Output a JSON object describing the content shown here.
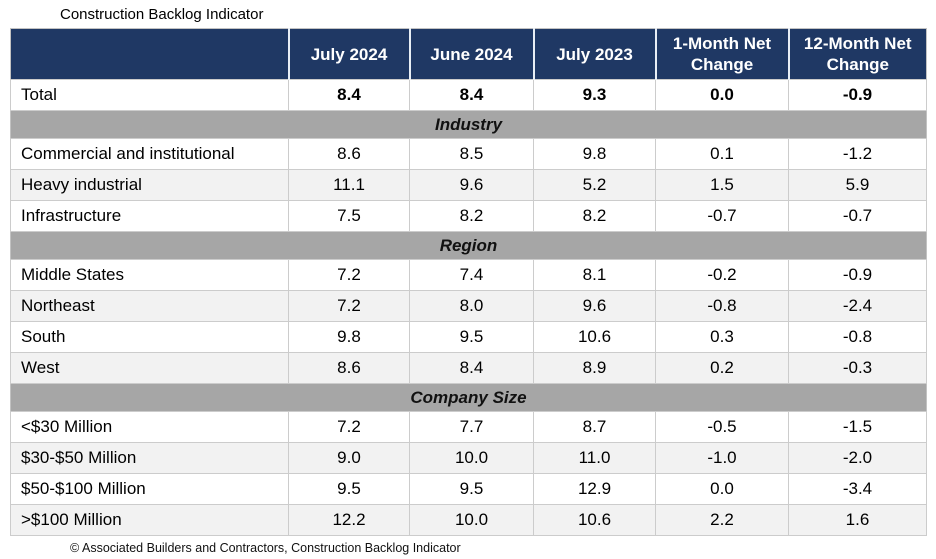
{
  "title": "Construction Backlog Indicator",
  "footer": "© Associated Builders and Contractors, Construction Backlog Indicator",
  "colors": {
    "header_bg": "#1F3864",
    "header_text": "#FFFFFF",
    "section_band_bg": "#A6A6A6",
    "row_alt_bg": "#F2F2F2",
    "grid_border": "#CCCCCC"
  },
  "chart_data": {
    "type": "table",
    "title": "Construction Backlog Indicator",
    "columns": [
      "",
      "July 2024",
      "June 2024",
      "July 2023",
      "1-Month Net Change",
      "12-Month Net Change"
    ],
    "total_row": {
      "label": "Total",
      "values": [
        "8.4",
        "8.4",
        "9.3",
        "0.0",
        "-0.9"
      ]
    },
    "sections": [
      {
        "name": "Industry",
        "rows": [
          {
            "label": "Commercial and institutional",
            "values": [
              "8.6",
              "8.5",
              "9.8",
              "0.1",
              "-1.2"
            ]
          },
          {
            "label": "Heavy industrial",
            "values": [
              "11.1",
              "9.6",
              "5.2",
              "1.5",
              "5.9"
            ]
          },
          {
            "label": "Infrastructure",
            "values": [
              "7.5",
              "8.2",
              "8.2",
              "-0.7",
              "-0.7"
            ]
          }
        ]
      },
      {
        "name": "Region",
        "rows": [
          {
            "label": "Middle States",
            "values": [
              "7.2",
              "7.4",
              "8.1",
              "-0.2",
              "-0.9"
            ]
          },
          {
            "label": "Northeast",
            "values": [
              "7.2",
              "8.0",
              "9.6",
              "-0.8",
              "-2.4"
            ]
          },
          {
            "label": "South",
            "values": [
              "9.8",
              "9.5",
              "10.6",
              "0.3",
              "-0.8"
            ]
          },
          {
            "label": "West",
            "values": [
              "8.6",
              "8.4",
              "8.9",
              "0.2",
              "-0.3"
            ]
          }
        ]
      },
      {
        "name": "Company Size",
        "rows": [
          {
            "label": "<$30 Million",
            "values": [
              "7.2",
              "7.7",
              "8.7",
              "-0.5",
              "-1.5"
            ]
          },
          {
            "label": "$30-$50 Million",
            "values": [
              "9.0",
              "10.0",
              "11.0",
              "-1.0",
              "-2.0"
            ]
          },
          {
            "label": "$50-$100 Million",
            "values": [
              "9.5",
              "9.5",
              "12.9",
              "0.0",
              "-3.4"
            ]
          },
          {
            "label": ">$100 Million",
            "values": [
              "12.2",
              "10.0",
              "10.6",
              "2.2",
              "1.6"
            ]
          }
        ]
      }
    ],
    "source": "© Associated Builders and Contractors, Construction Backlog Indicator"
  }
}
